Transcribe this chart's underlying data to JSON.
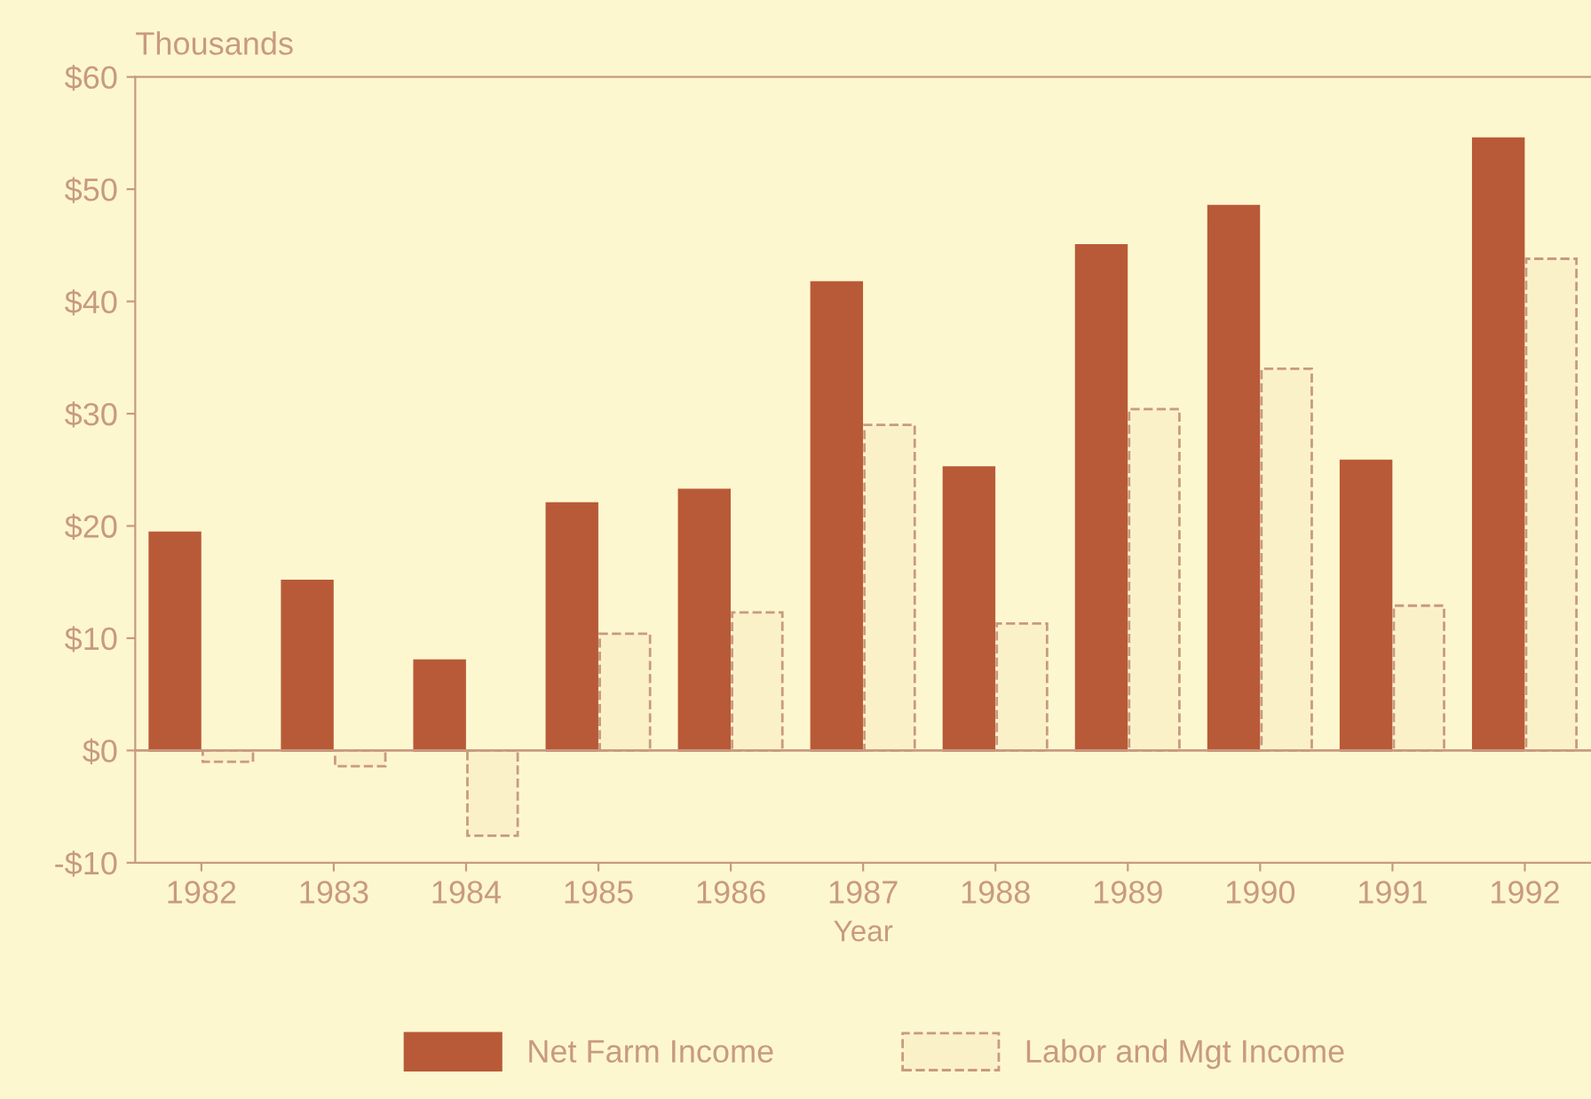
{
  "chart_data": {
    "type": "bar",
    "ylabel": "Thousands",
    "xlabel": "Year",
    "categories": [
      "1982",
      "1983",
      "1984",
      "1985",
      "1986",
      "1987",
      "1988",
      "1989",
      "1990",
      "1991",
      "1992"
    ],
    "series": [
      {
        "name": "Net Farm Income",
        "color": "#b85a38",
        "values": [
          19.4,
          15.1,
          8.0,
          22.0,
          23.2,
          41.7,
          25.2,
          45.0,
          48.5,
          25.8,
          54.5
        ]
      },
      {
        "name": "Labor and Mgt Income",
        "color": "#fbf1c8",
        "values": [
          -1.0,
          -1.4,
          -7.6,
          10.4,
          12.3,
          29.0,
          11.3,
          30.4,
          34.0,
          12.9,
          43.8
        ]
      }
    ],
    "ylim": [
      -10,
      60
    ],
    "yticks": [
      {
        "value": -10,
        "label": "-$10"
      },
      {
        "value": 0,
        "label": "$0"
      },
      {
        "value": 10,
        "label": "$10"
      },
      {
        "value": 20,
        "label": "$20"
      },
      {
        "value": 30,
        "label": "$30"
      },
      {
        "value": 40,
        "label": "$40"
      },
      {
        "value": 50,
        "label": "$50"
      },
      {
        "value": 60,
        "label": "$60"
      }
    ],
    "ref_lines": [
      {
        "axis": "y",
        "value": 0,
        "color": "#c89a80"
      }
    ],
    "grid": false,
    "legend": "bottom"
  }
}
